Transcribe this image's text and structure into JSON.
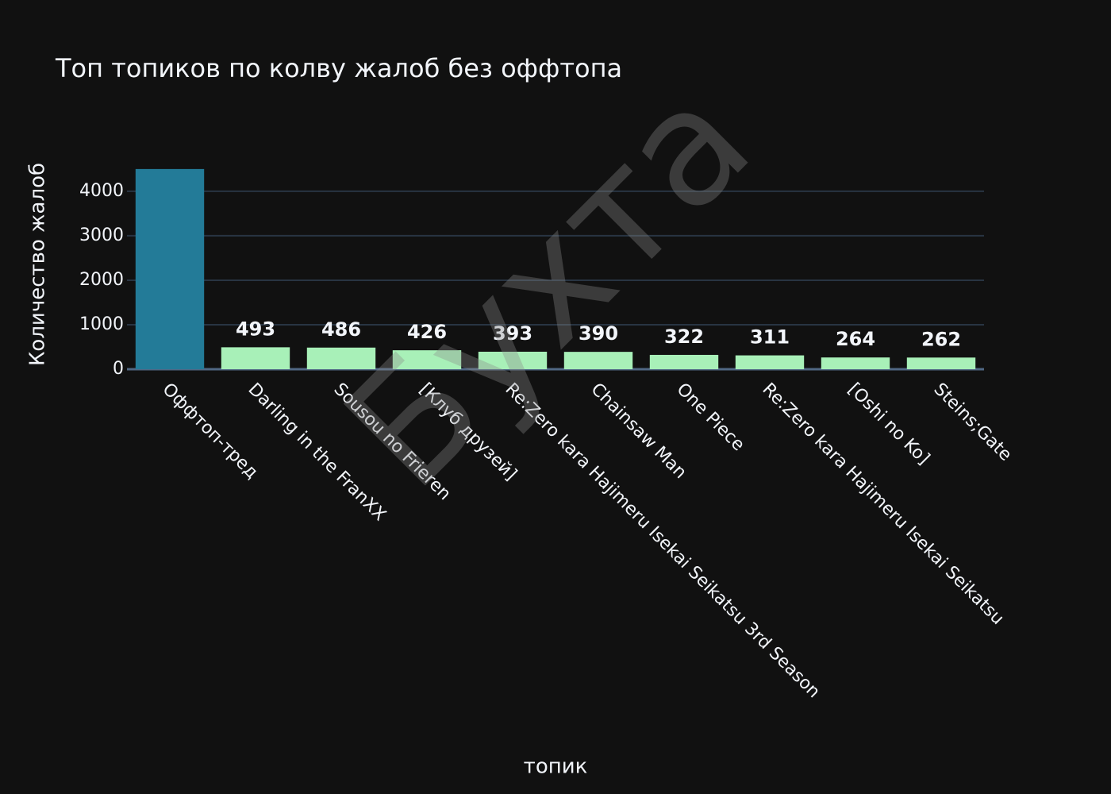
{
  "chart_data": {
    "type": "bar",
    "title": "Топ топиков по колву жалоб без оффтопа",
    "xlabel": "топик",
    "ylabel": "Количество жалоб",
    "watermark": "Бухта",
    "categories": [
      "Оффтоп-тред",
      "Darling in the FranXX",
      "Sousou no Frieren",
      "[Клуб друзей]",
      "Re:Zero kara Hajimeru Isekai Seikatsu 3rd Season",
      "Chainsaw Man",
      "One Piece",
      "Re:Zero kara Hajimeru Isekai Seikatsu",
      "[Oshi no Ko]",
      "Steins;Gate"
    ],
    "values": [
      4500,
      493,
      486,
      426,
      393,
      390,
      322,
      311,
      264,
      262
    ],
    "colors": [
      "#237b98",
      "#a8f0b8",
      "#a8f0b8",
      "#a8f0b8",
      "#a8f0b8",
      "#a8f0b8",
      "#a8f0b8",
      "#a8f0b8",
      "#a8f0b8",
      "#a8f0b8"
    ],
    "ylim": [
      0,
      4730
    ],
    "yticks": [
      0,
      1000,
      2000,
      3000,
      4000
    ],
    "grid": true
  }
}
